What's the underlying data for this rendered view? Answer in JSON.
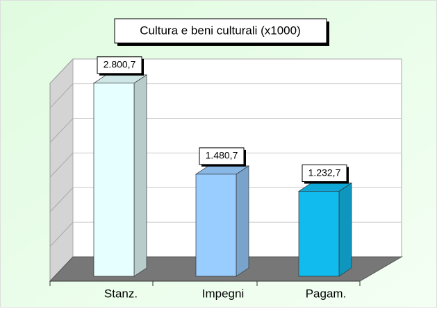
{
  "chart_data": {
    "type": "bar3d",
    "title": "Cultura e beni culturali (x1000)",
    "categories": [
      "Stanz.",
      "Impegni",
      "Pagam."
    ],
    "values": [
      2800.7,
      1480.7,
      1232.7
    ],
    "value_labels": [
      "2.800,7",
      "1.480,7",
      "1.232,7"
    ],
    "colors": [
      "#e6ffff",
      "#99ccff",
      "#11bbee"
    ],
    "ylim": [
      0,
      3000
    ],
    "grid": true
  }
}
